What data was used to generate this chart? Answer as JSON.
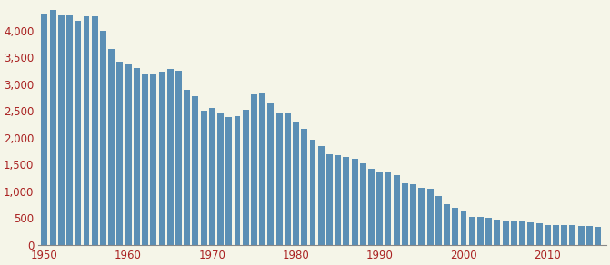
{
  "years": [
    1950,
    1951,
    1952,
    1953,
    1954,
    1955,
    1956,
    1957,
    1958,
    1959,
    1960,
    1961,
    1962,
    1963,
    1964,
    1965,
    1966,
    1967,
    1968,
    1969,
    1970,
    1971,
    1972,
    1973,
    1974,
    1975,
    1976,
    1977,
    1978,
    1979,
    1980,
    1981,
    1982,
    1983,
    1984,
    1985,
    1986,
    1987,
    1988,
    1989,
    1990,
    1991,
    1992,
    1993,
    1994,
    1995,
    1996,
    1997,
    1998,
    1999,
    2000,
    2001,
    2002,
    2003,
    2004,
    2005,
    2006,
    2007,
    2008,
    2009,
    2010,
    2011,
    2012,
    2013,
    2014,
    2015,
    2016
  ],
  "values": [
    4320,
    4380,
    4280,
    4280,
    4180,
    4260,
    4270,
    4000,
    3650,
    3420,
    3380,
    3300,
    3200,
    3180,
    3240,
    3280,
    3250,
    2900,
    2780,
    2500,
    2560,
    2450,
    2390,
    2410,
    2520,
    2810,
    2820,
    2650,
    2470,
    2460,
    2310,
    2160,
    1970,
    1840,
    1700,
    1680,
    1650,
    1600,
    1520,
    1430,
    1350,
    1350,
    1300,
    1150,
    1130,
    1060,
    1050,
    920,
    760,
    700,
    620,
    530,
    530,
    500,
    470,
    460,
    450,
    450,
    430,
    410,
    380,
    370,
    370,
    365,
    360,
    355,
    340
  ],
  "bar_color": "#5b8fb5",
  "background_color": "#f5f5e8",
  "ylim": [
    0,
    4500
  ],
  "yticks": [
    0,
    500,
    1000,
    1500,
    2000,
    2500,
    3000,
    3500,
    4000
  ],
  "xticks": [
    1950,
    1960,
    1970,
    1980,
    1990,
    2000,
    2010
  ],
  "tick_color": "#aa2222",
  "tick_fontsize": 8.5,
  "bar_width": 0.75
}
